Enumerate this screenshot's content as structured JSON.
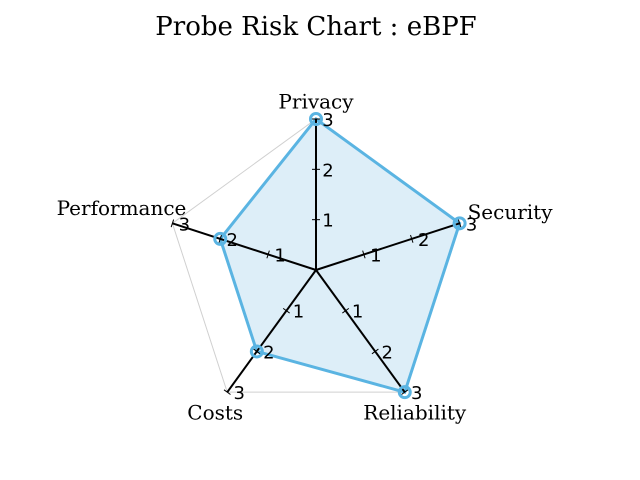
{
  "chart_data": {
    "type": "radar",
    "title": "Probe Risk Chart : eBPF",
    "axes": [
      "Privacy",
      "Security",
      "Reliability",
      "Costs",
      "Performance"
    ],
    "series": [
      {
        "values": [
          3,
          3,
          3,
          2,
          2
        ]
      }
    ],
    "rlim": [
      0,
      3
    ],
    "ticks": [
      "1",
      "2",
      "3"
    ],
    "grid": true,
    "colors": {
      "line": "#5ab4e2",
      "fill": "#ddeef8",
      "axis": "#000000",
      "grid": "#d0d0d0"
    }
  }
}
